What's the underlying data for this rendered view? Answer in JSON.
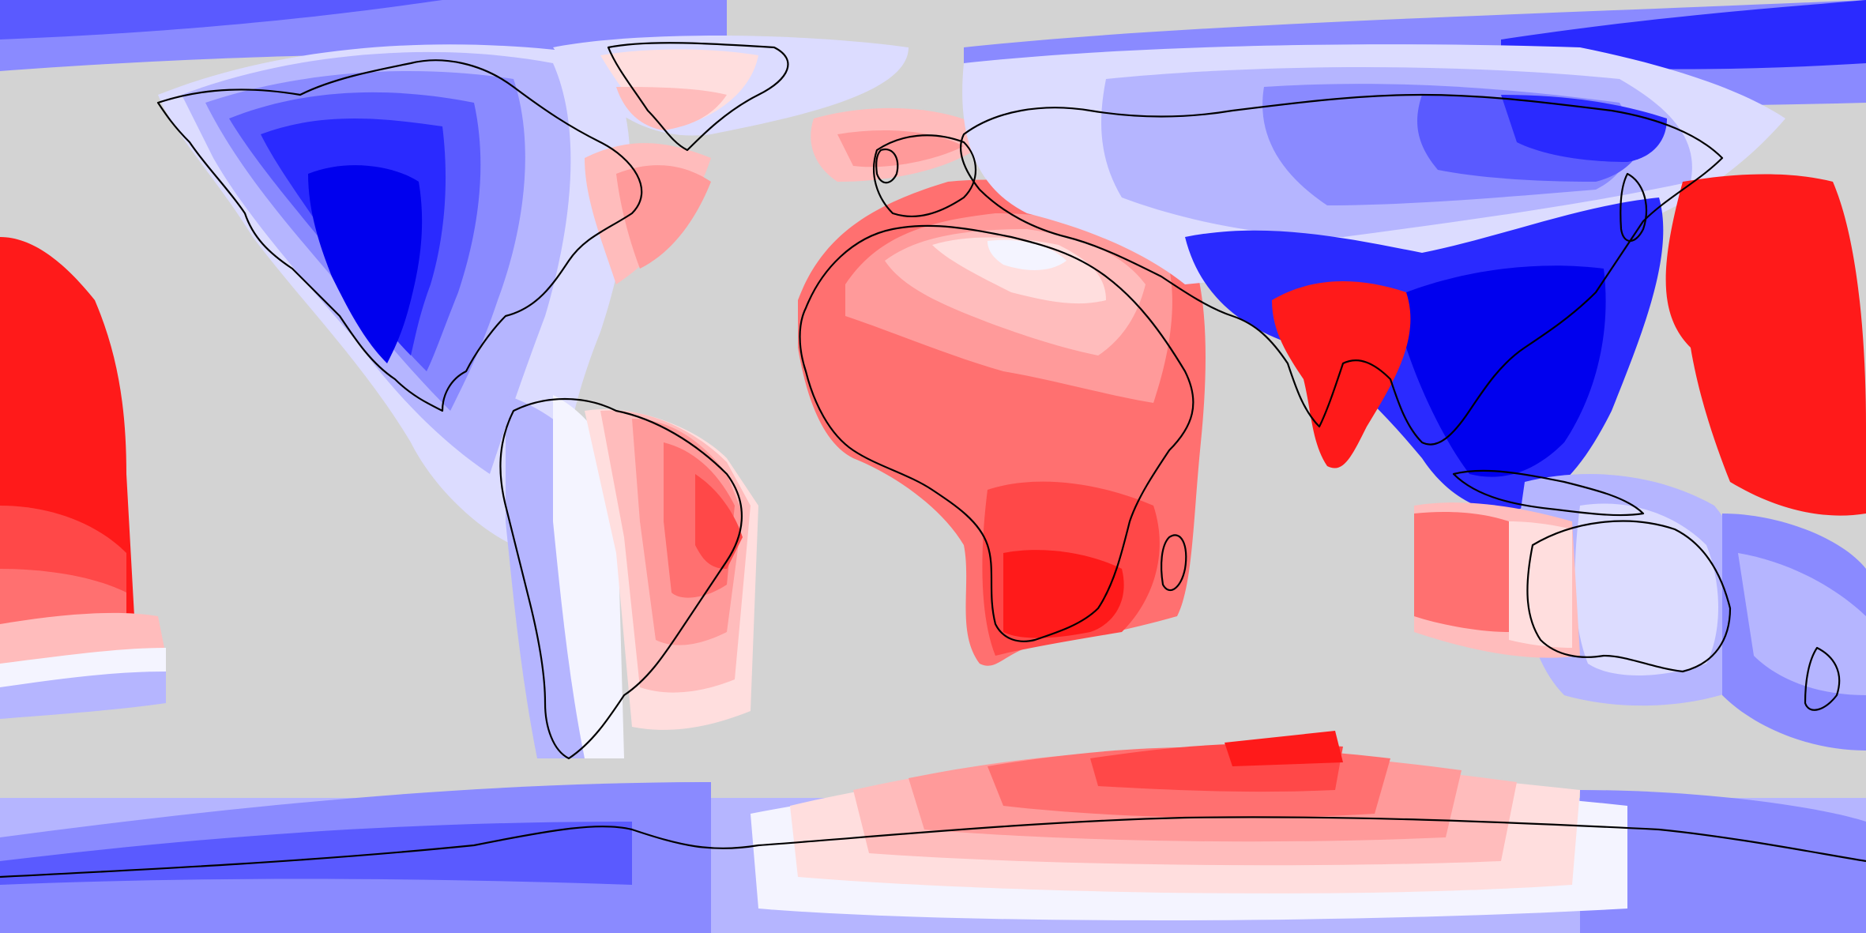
{
  "map": {
    "projection": "equirectangular",
    "extent": {
      "lon": [
        -180,
        180
      ],
      "lat": [
        -90,
        90
      ]
    },
    "background_color": "#d3d3d3",
    "coastline_color": "#000000",
    "diverging_palette": {
      "negative": [
        "#0000ee",
        "#2a2aff",
        "#5a5aff",
        "#8a8aff",
        "#b5b5ff",
        "#dcdcff"
      ],
      "neutral": "#f4f4ff",
      "positive": [
        "#ffdede",
        "#ffbcbc",
        "#ff9a9a",
        "#ff7070",
        "#ff4848",
        "#ff1a1a"
      ]
    },
    "regions": [
      {
        "name": "north-america",
        "sign": "negative"
      },
      {
        "name": "greenland",
        "sign": "positive"
      },
      {
        "name": "east-atlantic",
        "sign": "positive"
      },
      {
        "name": "west-south-atlantic",
        "sign": "negative"
      },
      {
        "name": "south-america",
        "sign": "positive"
      },
      {
        "name": "africa",
        "sign": "positive"
      },
      {
        "name": "europe-asia",
        "sign": "negative"
      },
      {
        "name": "india",
        "sign": "positive"
      },
      {
        "name": "southeast-asia",
        "sign": "negative"
      },
      {
        "name": "australia",
        "sign": "negative"
      },
      {
        "name": "east-indian-ocean",
        "sign": "positive"
      },
      {
        "name": "west-pacific",
        "sign": "positive"
      },
      {
        "name": "central-pacific",
        "sign": "positive"
      },
      {
        "name": "antarctica",
        "sign": "positive"
      },
      {
        "name": "southern-ocean",
        "sign": "negative"
      }
    ]
  }
}
